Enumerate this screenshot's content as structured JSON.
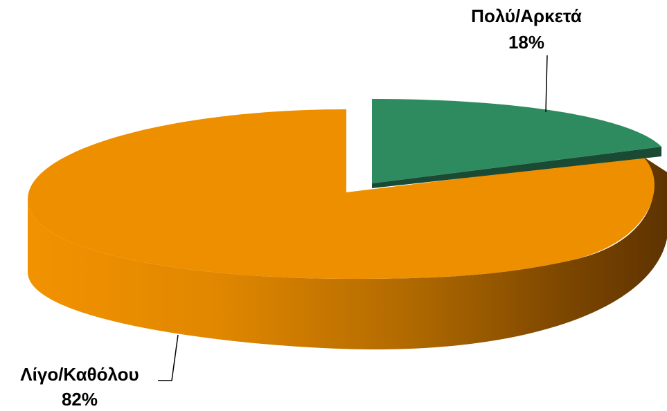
{
  "chart_data": {
    "type": "pie",
    "style": "3d-exploded",
    "slices": [
      {
        "label": "Πολύ/Αρκετά",
        "value": 18,
        "value_label": "18%",
        "color": "#2e8b5f",
        "side_color": "#1b4a34"
      },
      {
        "label": "Λίγο/Καθόλου",
        "value": 82,
        "value_label": "82%",
        "color": "#ee8f00",
        "side_color": "#6b3d00"
      }
    ]
  }
}
